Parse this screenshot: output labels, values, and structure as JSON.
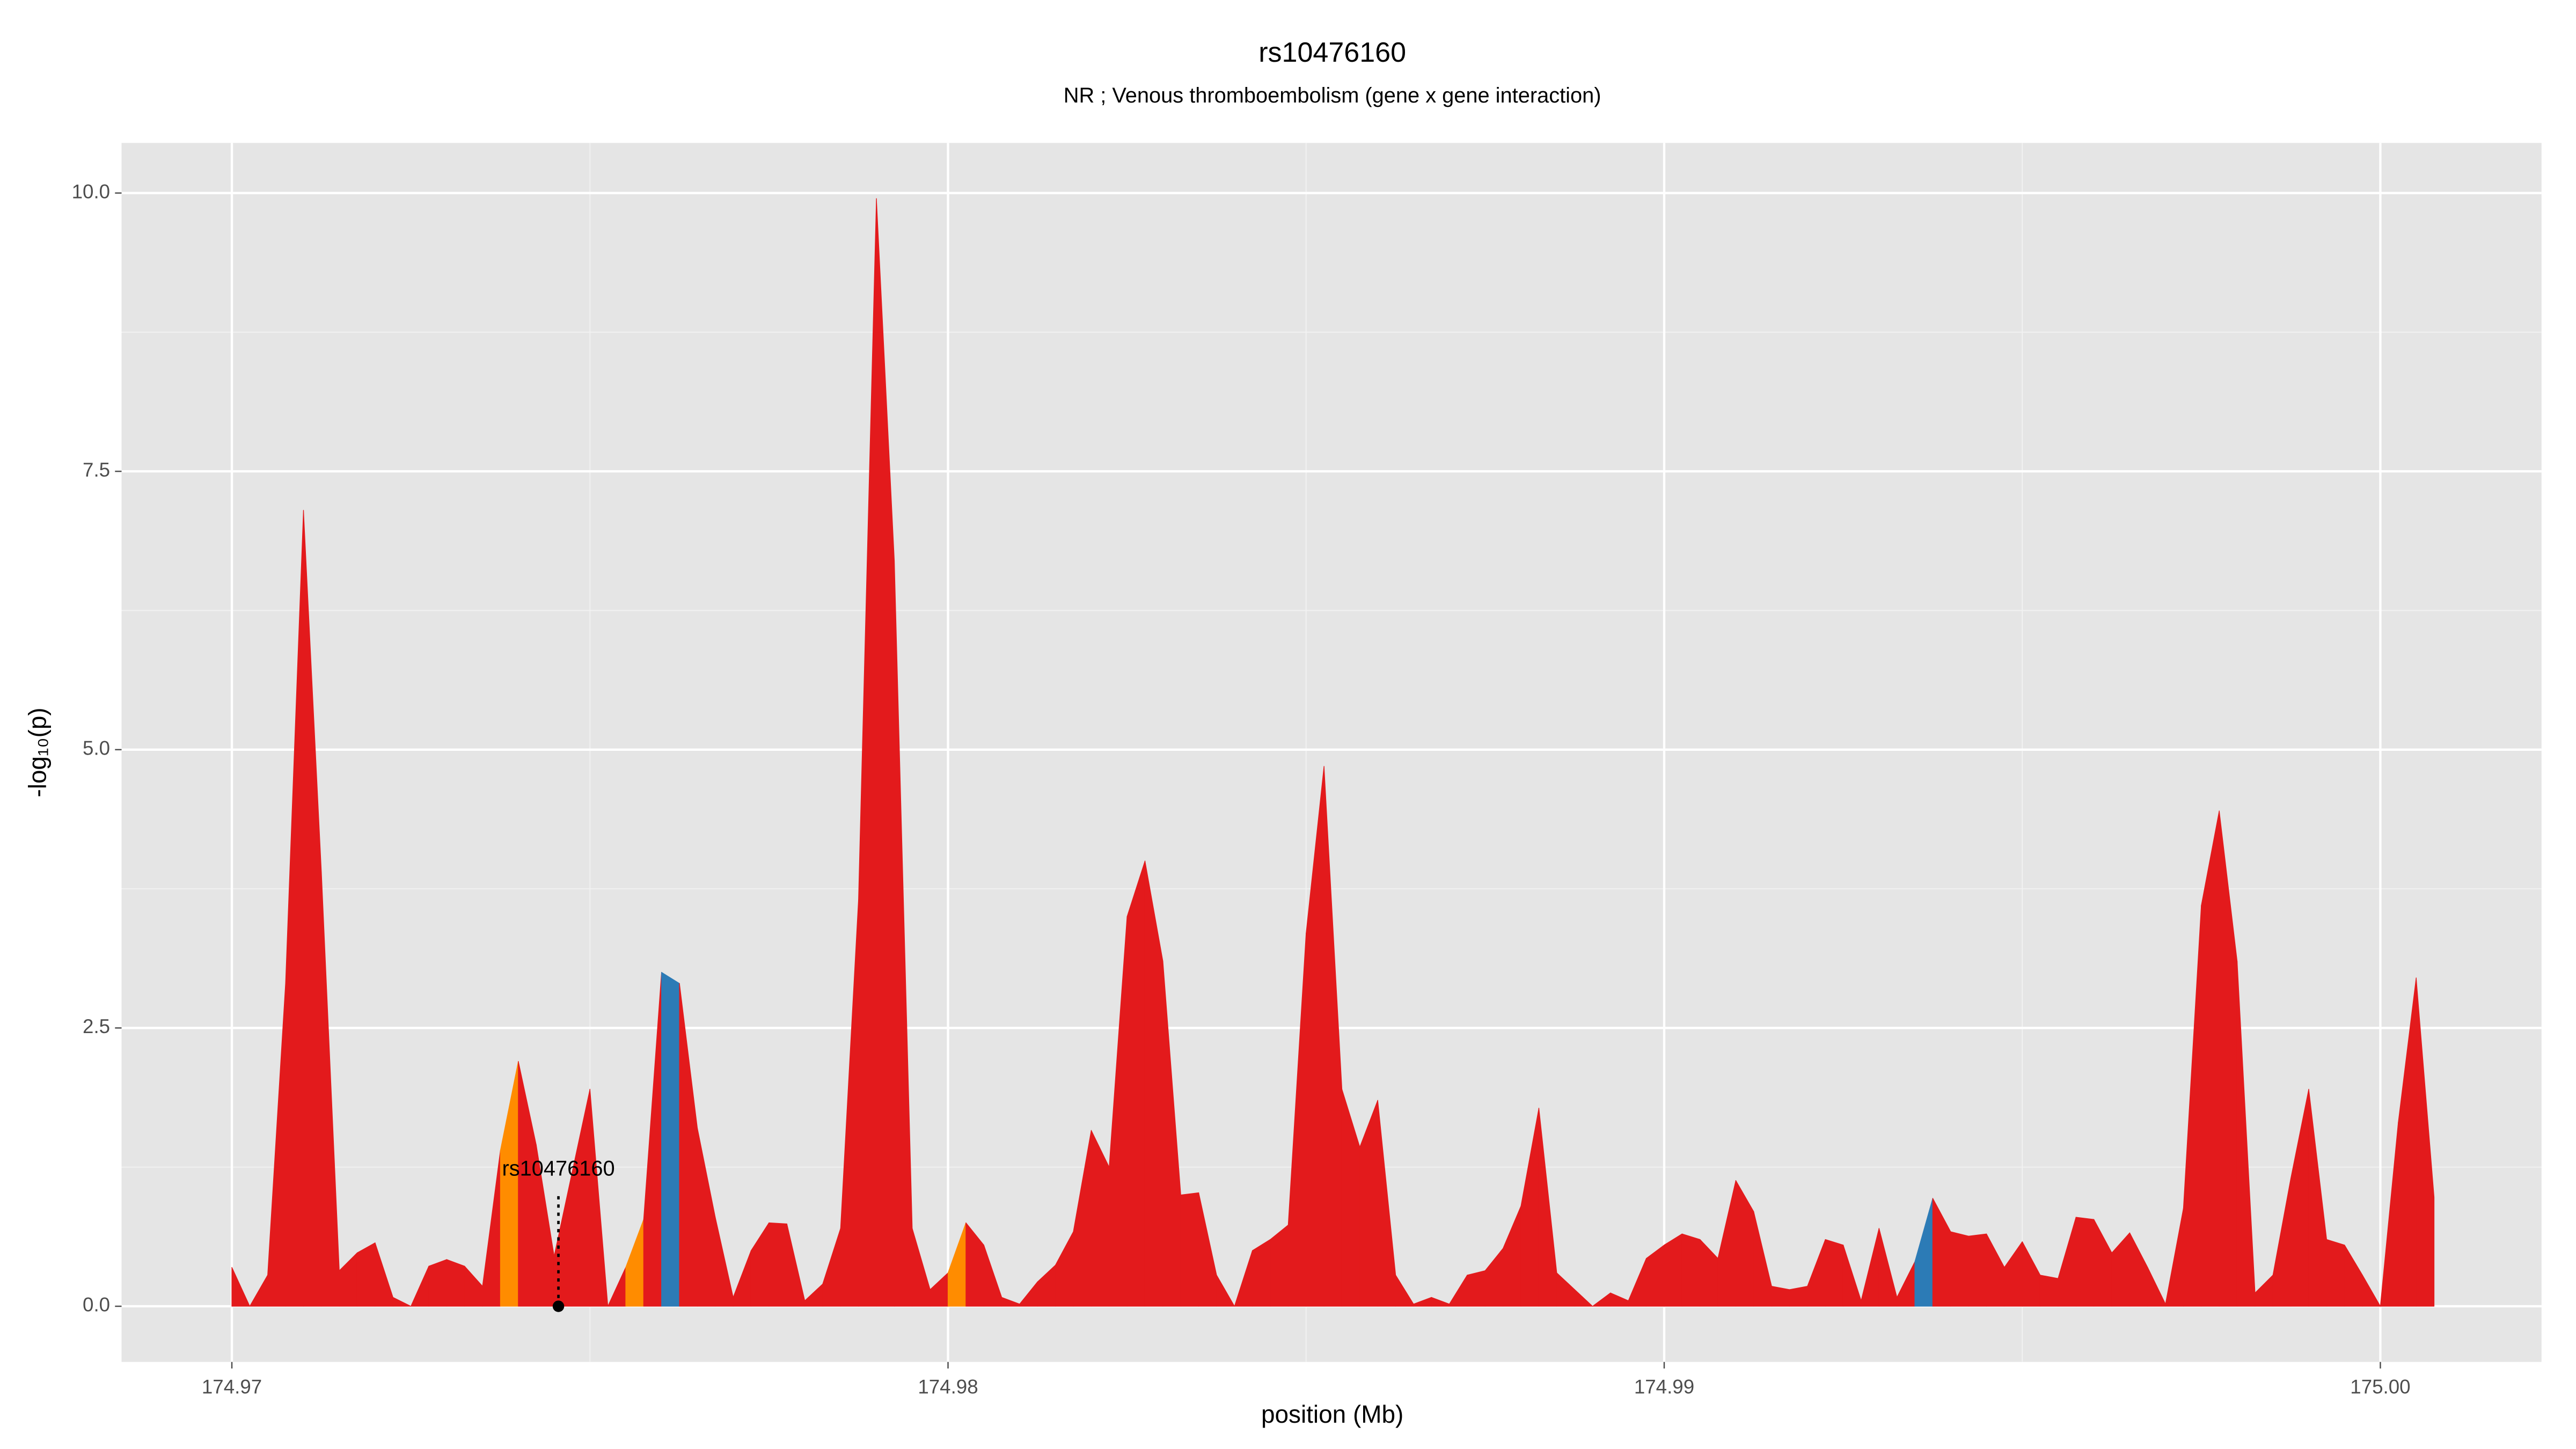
{
  "chart_data": {
    "type": "area",
    "title": "rs10476160",
    "subtitle": "NR ; Venous thromboembolism (gene x gene interaction)",
    "x_label": "position (Mb)",
    "y_label": "-log₁₀(p)",
    "x": [
      174.97,
      174.97025,
      174.9705,
      174.97075,
      174.971,
      174.97125,
      174.9715,
      174.97175,
      174.972,
      174.97225,
      174.9725,
      174.97275,
      174.973,
      174.97325,
      174.9735,
      174.97375,
      174.974,
      174.97425,
      174.9745,
      174.97475,
      174.975,
      174.97525,
      174.9755,
      174.97575,
      174.976,
      174.97625,
      174.9765,
      174.97675,
      174.977,
      174.97725,
      174.9775,
      174.97775,
      174.978,
      174.97825,
      174.9785,
      174.97875,
      174.979,
      174.97925,
      174.9795,
      174.97975,
      174.98,
      174.98025,
      174.9805,
      174.98075,
      174.981,
      174.98125,
      174.9815,
      174.98175,
      174.982,
      174.98225,
      174.9825,
      174.98275,
      174.983,
      174.98325,
      174.9835,
      174.98375,
      174.984,
      174.98425,
      174.9845,
      174.98475,
      174.985,
      174.98525,
      174.9855,
      174.98575,
      174.986,
      174.98625,
      174.9865,
      174.98675,
      174.987,
      174.98725,
      174.9875,
      174.98775,
      174.988,
      174.98825,
      174.9885,
      174.98875,
      174.989,
      174.98925,
      174.9895,
      174.98975,
      174.99,
      174.99025,
      174.9905,
      174.99075,
      174.991,
      174.99125,
      174.9915,
      174.99175,
      174.992,
      174.99225,
      174.9925,
      174.99275,
      174.993,
      174.99325,
      174.9935,
      174.99375,
      174.994,
      174.99425,
      174.9945,
      174.99475,
      174.995,
      174.99525,
      174.9955,
      174.99575,
      174.996,
      174.99625,
      174.9965,
      174.99675,
      174.997,
      174.99725,
      174.9975,
      174.99775,
      174.998,
      174.99825,
      174.9985,
      174.99875,
      174.999,
      174.99925,
      174.9995,
      174.99975,
      175.0,
      175.00025,
      175.0005,
      175.00075
    ],
    "values": [
      0.35,
      0,
      0.28,
      2.9,
      7.15,
      3.9,
      0.32,
      0.48,
      0.57,
      0.08,
      0,
      0.36,
      0.42,
      0.36,
      0.18,
      1.4,
      2.2,
      1.45,
      0.45,
      1.2,
      1.95,
      0,
      0.35,
      0.78,
      3.0,
      2.9,
      1.6,
      0.8,
      0.08,
      0.5,
      0.75,
      0.74,
      0.05,
      0.2,
      0.7,
      3.65,
      9.95,
      6.7,
      0.7,
      0.15,
      0.3,
      0.75,
      0.55,
      0.08,
      0.02,
      0.22,
      0.37,
      0.67,
      1.58,
      1.25,
      3.5,
      4.0,
      3.1,
      1.0,
      1.02,
      0.28,
      0,
      0.5,
      0.6,
      0.73,
      3.35,
      4.85,
      1.95,
      1.43,
      1.85,
      0.28,
      0.02,
      0.08,
      0.02,
      0.28,
      0.32,
      0.52,
      0.9,
      1.78,
      0.3,
      0.15,
      0,
      0.12,
      0.05,
      0.43,
      0.55,
      0.65,
      0.6,
      0.43,
      1.13,
      0.85,
      0.18,
      0.15,
      0.18,
      0.6,
      0.55,
      0.05,
      0.7,
      0.08,
      0.4,
      0.97,
      0.67,
      0.63,
      0.65,
      0.35,
      0.58,
      0.28,
      0.25,
      0.8,
      0.78,
      0.48,
      0.66,
      0.35,
      0.02,
      0.88,
      3.6,
      4.45,
      3.1,
      0.12,
      0.28,
      1.15,
      1.95,
      0.6,
      0.55,
      0.28,
      0,
      1.65,
      2.95,
      0.98
    ],
    "segment_colors": [
      "#e31a1c",
      "#e31a1c",
      "#e31a1c",
      "#e31a1c",
      "#e31a1c",
      "#e31a1c",
      "#e31a1c",
      "#e31a1c",
      "#e31a1c",
      "#e31a1c",
      "#e31a1c",
      "#e31a1c",
      "#e31a1c",
      "#e31a1c",
      "#e31a1c",
      "#ff8c00",
      "#e31a1c",
      "#e31a1c",
      "#e31a1c",
      "#e31a1c",
      "#e31a1c",
      "#e31a1c",
      "#ff8c00",
      "#e31a1c",
      "#2c7bb6",
      "#e31a1c",
      "#e31a1c",
      "#e31a1c",
      "#e31a1c",
      "#e31a1c",
      "#e31a1c",
      "#e31a1c",
      "#e31a1c",
      "#e31a1c",
      "#e31a1c",
      "#e31a1c",
      "#e31a1c",
      "#e31a1c",
      "#e31a1c",
      "#e31a1c",
      "#ff8c00",
      "#e31a1c",
      "#e31a1c",
      "#e31a1c",
      "#e31a1c",
      "#e31a1c",
      "#e31a1c",
      "#e31a1c",
      "#e31a1c",
      "#e31a1c",
      "#e31a1c",
      "#e31a1c",
      "#e31a1c",
      "#e31a1c",
      "#e31a1c",
      "#e31a1c",
      "#e31a1c",
      "#e31a1c",
      "#e31a1c",
      "#e31a1c",
      "#e31a1c",
      "#e31a1c",
      "#e31a1c",
      "#e31a1c",
      "#e31a1c",
      "#e31a1c",
      "#e31a1c",
      "#e31a1c",
      "#e31a1c",
      "#e31a1c",
      "#e31a1c",
      "#e31a1c",
      "#e31a1c",
      "#e31a1c",
      "#e31a1c",
      "#e31a1c",
      "#e31a1c",
      "#e31a1c",
      "#e31a1c",
      "#e31a1c",
      "#e31a1c",
      "#e31a1c",
      "#e31a1c",
      "#e31a1c",
      "#e31a1c",
      "#e31a1c",
      "#e31a1c",
      "#e31a1c",
      "#e31a1c",
      "#e31a1c",
      "#e31a1c",
      "#e31a1c",
      "#e31a1c",
      "#e31a1c",
      "#2c7bb6",
      "#e31a1c",
      "#e31a1c",
      "#e31a1c",
      "#e31a1c",
      "#e31a1c",
      "#e31a1c",
      "#e31a1c",
      "#e31a1c",
      "#e31a1c",
      "#e31a1c",
      "#e31a1c",
      "#e31a1c",
      "#e31a1c",
      "#e31a1c",
      "#e31a1c",
      "#e31a1c",
      "#e31a1c",
      "#e31a1c",
      "#e31a1c",
      "#e31a1c",
      "#e31a1c",
      "#e31a1c",
      "#e31a1c",
      "#e31a1c",
      "#e31a1c",
      "#e31a1c",
      "#e31a1c",
      "#e31a1c"
    ],
    "annotation": {
      "text": "rs10476160",
      "x": 174.97456,
      "y": 0
    },
    "xlim": [
      174.96846,
      175.00225
    ],
    "ylim": [
      -0.5,
      10.45
    ],
    "xticks": [
      174.97,
      174.98,
      174.99,
      {
        "value": 175.0,
        "label": "175.00"
      }
    ],
    "yticks": [
      {
        "value": 0,
        "label": "0.0"
      },
      2.5,
      {
        "value": 5,
        "label": "5.0"
      },
      7.5,
      {
        "value": 10,
        "label": "10.0"
      }
    ],
    "grid": true,
    "minor_grid": true
  }
}
